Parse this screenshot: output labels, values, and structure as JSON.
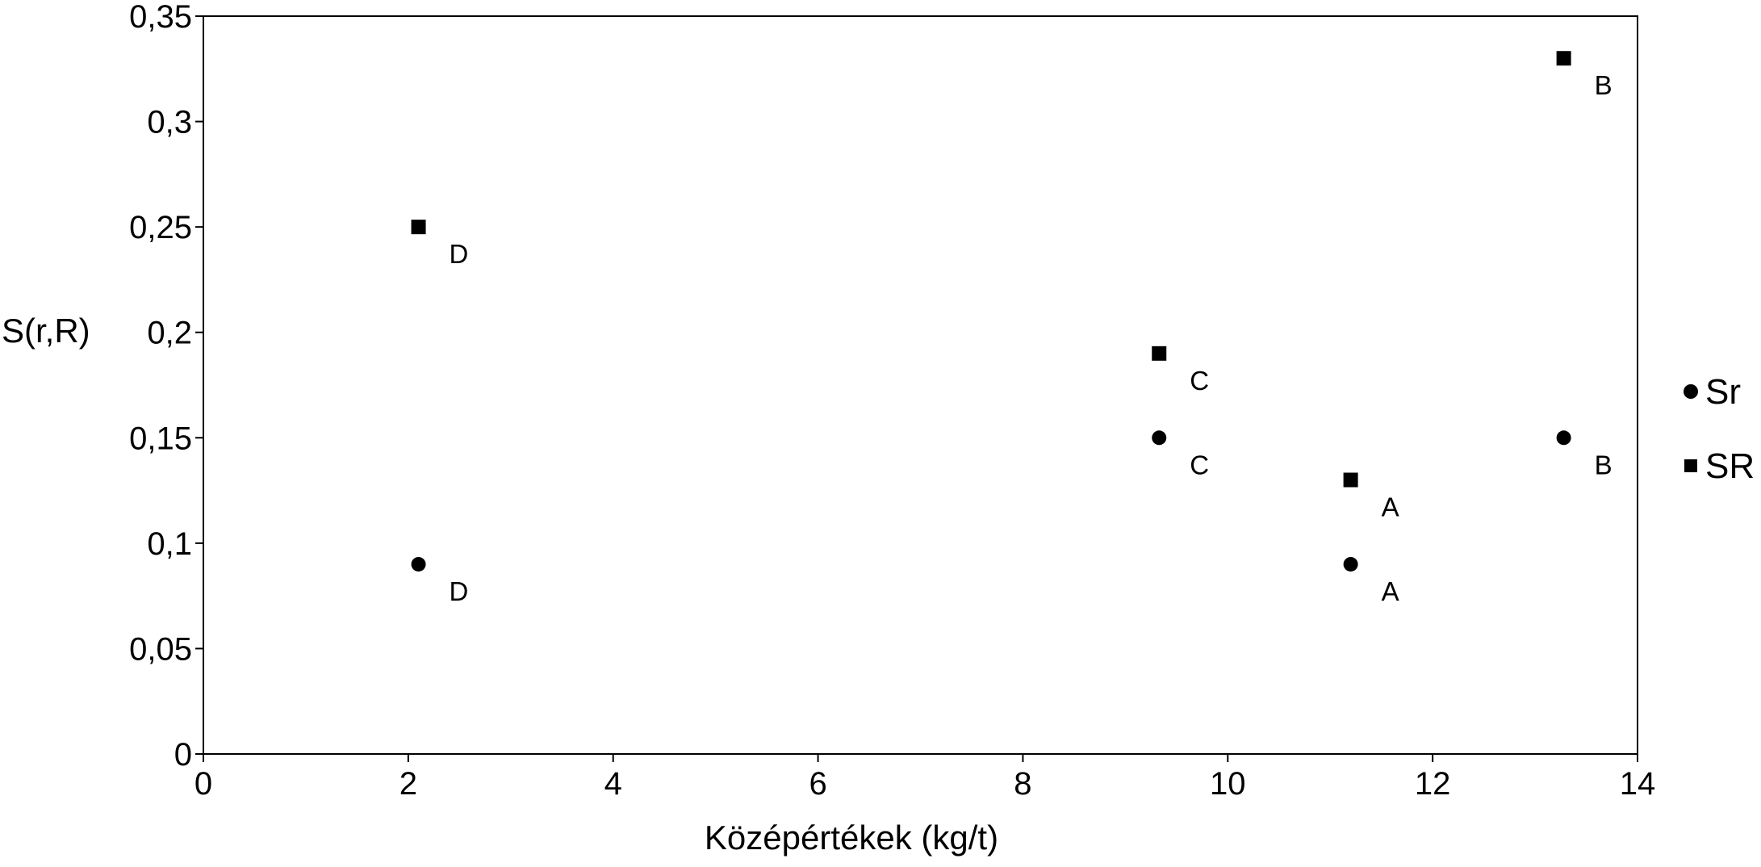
{
  "chart_data": {
    "type": "scatter",
    "title": "",
    "xlabel": "Középértékek (kg/t)",
    "ylabel": "S(r,R)",
    "xlim": [
      0,
      14
    ],
    "ylim": [
      0,
      0.35
    ],
    "x_ticks": [
      0,
      2,
      4,
      6,
      8,
      10,
      12,
      14
    ],
    "y_ticks": [
      0,
      0.05,
      0.1,
      0.15,
      0.2,
      0.25,
      0.3,
      0.35
    ],
    "x_tick_labels": [
      "0",
      "2",
      "4",
      "6",
      "8",
      "10",
      "12",
      "14"
    ],
    "y_tick_labels": [
      "0",
      "0,05",
      "0,1",
      "0,15",
      "0,2",
      "0,25",
      "0,3",
      "0,35"
    ],
    "grid": false,
    "legend_position": "right",
    "series": [
      {
        "name": "Sr",
        "marker": "circle",
        "color": "#000000",
        "points": [
          {
            "x": 2.1,
            "y": 0.09,
            "label": "D"
          },
          {
            "x": 9.33,
            "y": 0.15,
            "label": "C"
          },
          {
            "x": 11.2,
            "y": 0.09,
            "label": "A"
          },
          {
            "x": 13.28,
            "y": 0.15,
            "label": "B"
          }
        ]
      },
      {
        "name": "SR",
        "marker": "square",
        "color": "#000000",
        "points": [
          {
            "x": 2.1,
            "y": 0.25,
            "label": "D"
          },
          {
            "x": 9.33,
            "y": 0.19,
            "label": "C"
          },
          {
            "x": 11.2,
            "y": 0.13,
            "label": "A"
          },
          {
            "x": 13.28,
            "y": 0.33,
            "label": "B"
          }
        ]
      }
    ]
  }
}
